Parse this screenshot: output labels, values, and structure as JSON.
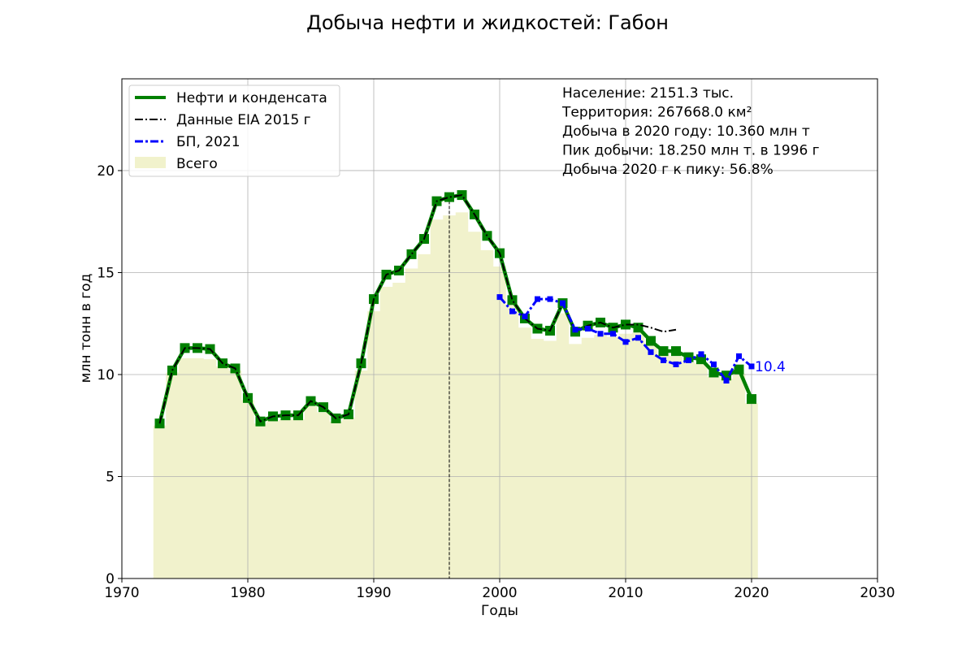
{
  "chart_data": {
    "type": "line",
    "title": "Добыча нефти и жидкостей: Габон",
    "xlabel": "Годы",
    "ylabel": "млн тонн в год",
    "xlim": [
      1970,
      2030
    ],
    "ylim": [
      0,
      24.5
    ],
    "x_ticks": [
      1970,
      1980,
      1990,
      2000,
      2010,
      2020,
      2030
    ],
    "y_ticks": [
      0,
      5,
      10,
      15,
      20
    ],
    "grid": true,
    "legend_position": "top-left",
    "legend": [
      {
        "label": "Нефти и конденсата",
        "style": "solid-thick",
        "color": "#008000"
      },
      {
        "label": "Данные EIA 2015 г",
        "style": "dashdot",
        "color": "#000000"
      },
      {
        "label": "БП, 2021",
        "style": "dashdot-thick",
        "color": "#0000ff"
      },
      {
        "label": "Всего",
        "style": "patch",
        "color": "#f1f2cc"
      }
    ],
    "info_lines": [
      "Население: 2151.3 тыс.",
      "Территория: 267668.0 км²",
      "Добыча в 2020 году: 10.360 млн т",
      "Пик добычи: 18.250 млн т. в 1996 г",
      "Добыча 2020 г к пику: 56.8%"
    ],
    "peak_line_year": 1996,
    "end_label": "10.4",
    "series": [
      {
        "name": "Нефти и конденсата",
        "color": "#008000",
        "x": [
          1973,
          1974,
          1975,
          1976,
          1977,
          1978,
          1979,
          1980,
          1981,
          1982,
          1983,
          1984,
          1985,
          1986,
          1987,
          1988,
          1989,
          1990,
          1991,
          1992,
          1993,
          1994,
          1995,
          1996,
          1997,
          1998,
          1999,
          2000,
          2001,
          2002,
          2003,
          2004,
          2005,
          2006,
          2007,
          2008,
          2009,
          2010,
          2011,
          2012,
          2013,
          2014,
          2015,
          2016,
          2017,
          2018,
          2019,
          2020
        ],
        "values": [
          7.6,
          10.2,
          11.3,
          11.3,
          11.25,
          10.55,
          10.3,
          8.85,
          7.7,
          7.95,
          8.0,
          8.0,
          8.7,
          8.4,
          7.85,
          8.05,
          10.55,
          13.7,
          14.9,
          15.1,
          15.9,
          16.65,
          18.5,
          18.7,
          18.8,
          17.85,
          16.8,
          15.95,
          13.65,
          12.75,
          12.25,
          12.15,
          13.5,
          12.1,
          12.4,
          12.55,
          12.3,
          12.45,
          12.3,
          11.65,
          11.15,
          11.15,
          10.85,
          10.75,
          10.1,
          9.95,
          10.25,
          8.8
        ]
      },
      {
        "name": "Данные EIA 2015 г",
        "color": "#000000",
        "x": [
          1973,
          1974,
          1975,
          1976,
          1977,
          1978,
          1979,
          1980,
          1981,
          1982,
          1983,
          1984,
          1985,
          1986,
          1987,
          1988,
          1989,
          1990,
          1991,
          1992,
          1993,
          1994,
          1995,
          1996,
          1997,
          1998,
          1999,
          2000,
          2001,
          2002,
          2003,
          2004,
          2005,
          2006,
          2007,
          2008,
          2009,
          2010,
          2011,
          2012,
          2013,
          2014
        ],
        "values": [
          7.6,
          10.2,
          11.3,
          11.3,
          11.25,
          10.55,
          10.3,
          8.85,
          7.7,
          7.95,
          8.0,
          8.0,
          8.7,
          8.4,
          7.85,
          8.05,
          10.55,
          13.7,
          14.9,
          15.1,
          15.9,
          16.65,
          18.5,
          18.7,
          18.8,
          17.85,
          16.8,
          15.95,
          13.65,
          12.75,
          12.25,
          12.15,
          13.5,
          12.1,
          12.4,
          12.55,
          12.3,
          12.45,
          12.45,
          12.3,
          12.1,
          12.2
        ]
      },
      {
        "name": "БП, 2021",
        "color": "#0000ff",
        "x": [
          2000,
          2001,
          2002,
          2003,
          2004,
          2005,
          2006,
          2007,
          2008,
          2009,
          2010,
          2011,
          2012,
          2013,
          2014,
          2015,
          2016,
          2017,
          2018,
          2019,
          2020
        ],
        "values": [
          13.8,
          13.1,
          12.85,
          13.7,
          13.7,
          13.5,
          12.2,
          12.25,
          12.0,
          12.0,
          11.6,
          11.8,
          11.1,
          10.7,
          10.5,
          10.7,
          11.0,
          10.5,
          9.7,
          10.9,
          10.4
        ]
      },
      {
        "name": "Всего",
        "color": "#f1f2cc",
        "x": [
          1973,
          1974,
          1975,
          1976,
          1977,
          1978,
          1979,
          1980,
          1981,
          1982,
          1983,
          1984,
          1985,
          1986,
          1987,
          1988,
          1989,
          1990,
          1991,
          1992,
          1993,
          1994,
          1995,
          1996,
          1997,
          1998,
          1999,
          2000,
          2001,
          2002,
          2003,
          2004,
          2005,
          2006,
          2007,
          2008,
          2009,
          2010,
          2011,
          2012,
          2013,
          2014,
          2015,
          2016,
          2017,
          2018,
          2019,
          2020
        ],
        "values": [
          7.5,
          10.1,
          10.8,
          10.8,
          10.75,
          10.4,
          10.2,
          8.75,
          7.6,
          7.75,
          7.8,
          7.8,
          8.45,
          8.15,
          7.7,
          7.9,
          10.2,
          13.1,
          14.3,
          14.5,
          15.2,
          15.9,
          17.6,
          17.8,
          17.95,
          17.0,
          16.1,
          15.3,
          13.4,
          12.3,
          11.75,
          11.65,
          13.0,
          11.5,
          11.8,
          11.95,
          11.85,
          12.0,
          12.05,
          11.5,
          11.0,
          10.9,
          10.6,
          10.55,
          9.9,
          9.8,
          10.05,
          8.6
        ]
      }
    ]
  }
}
